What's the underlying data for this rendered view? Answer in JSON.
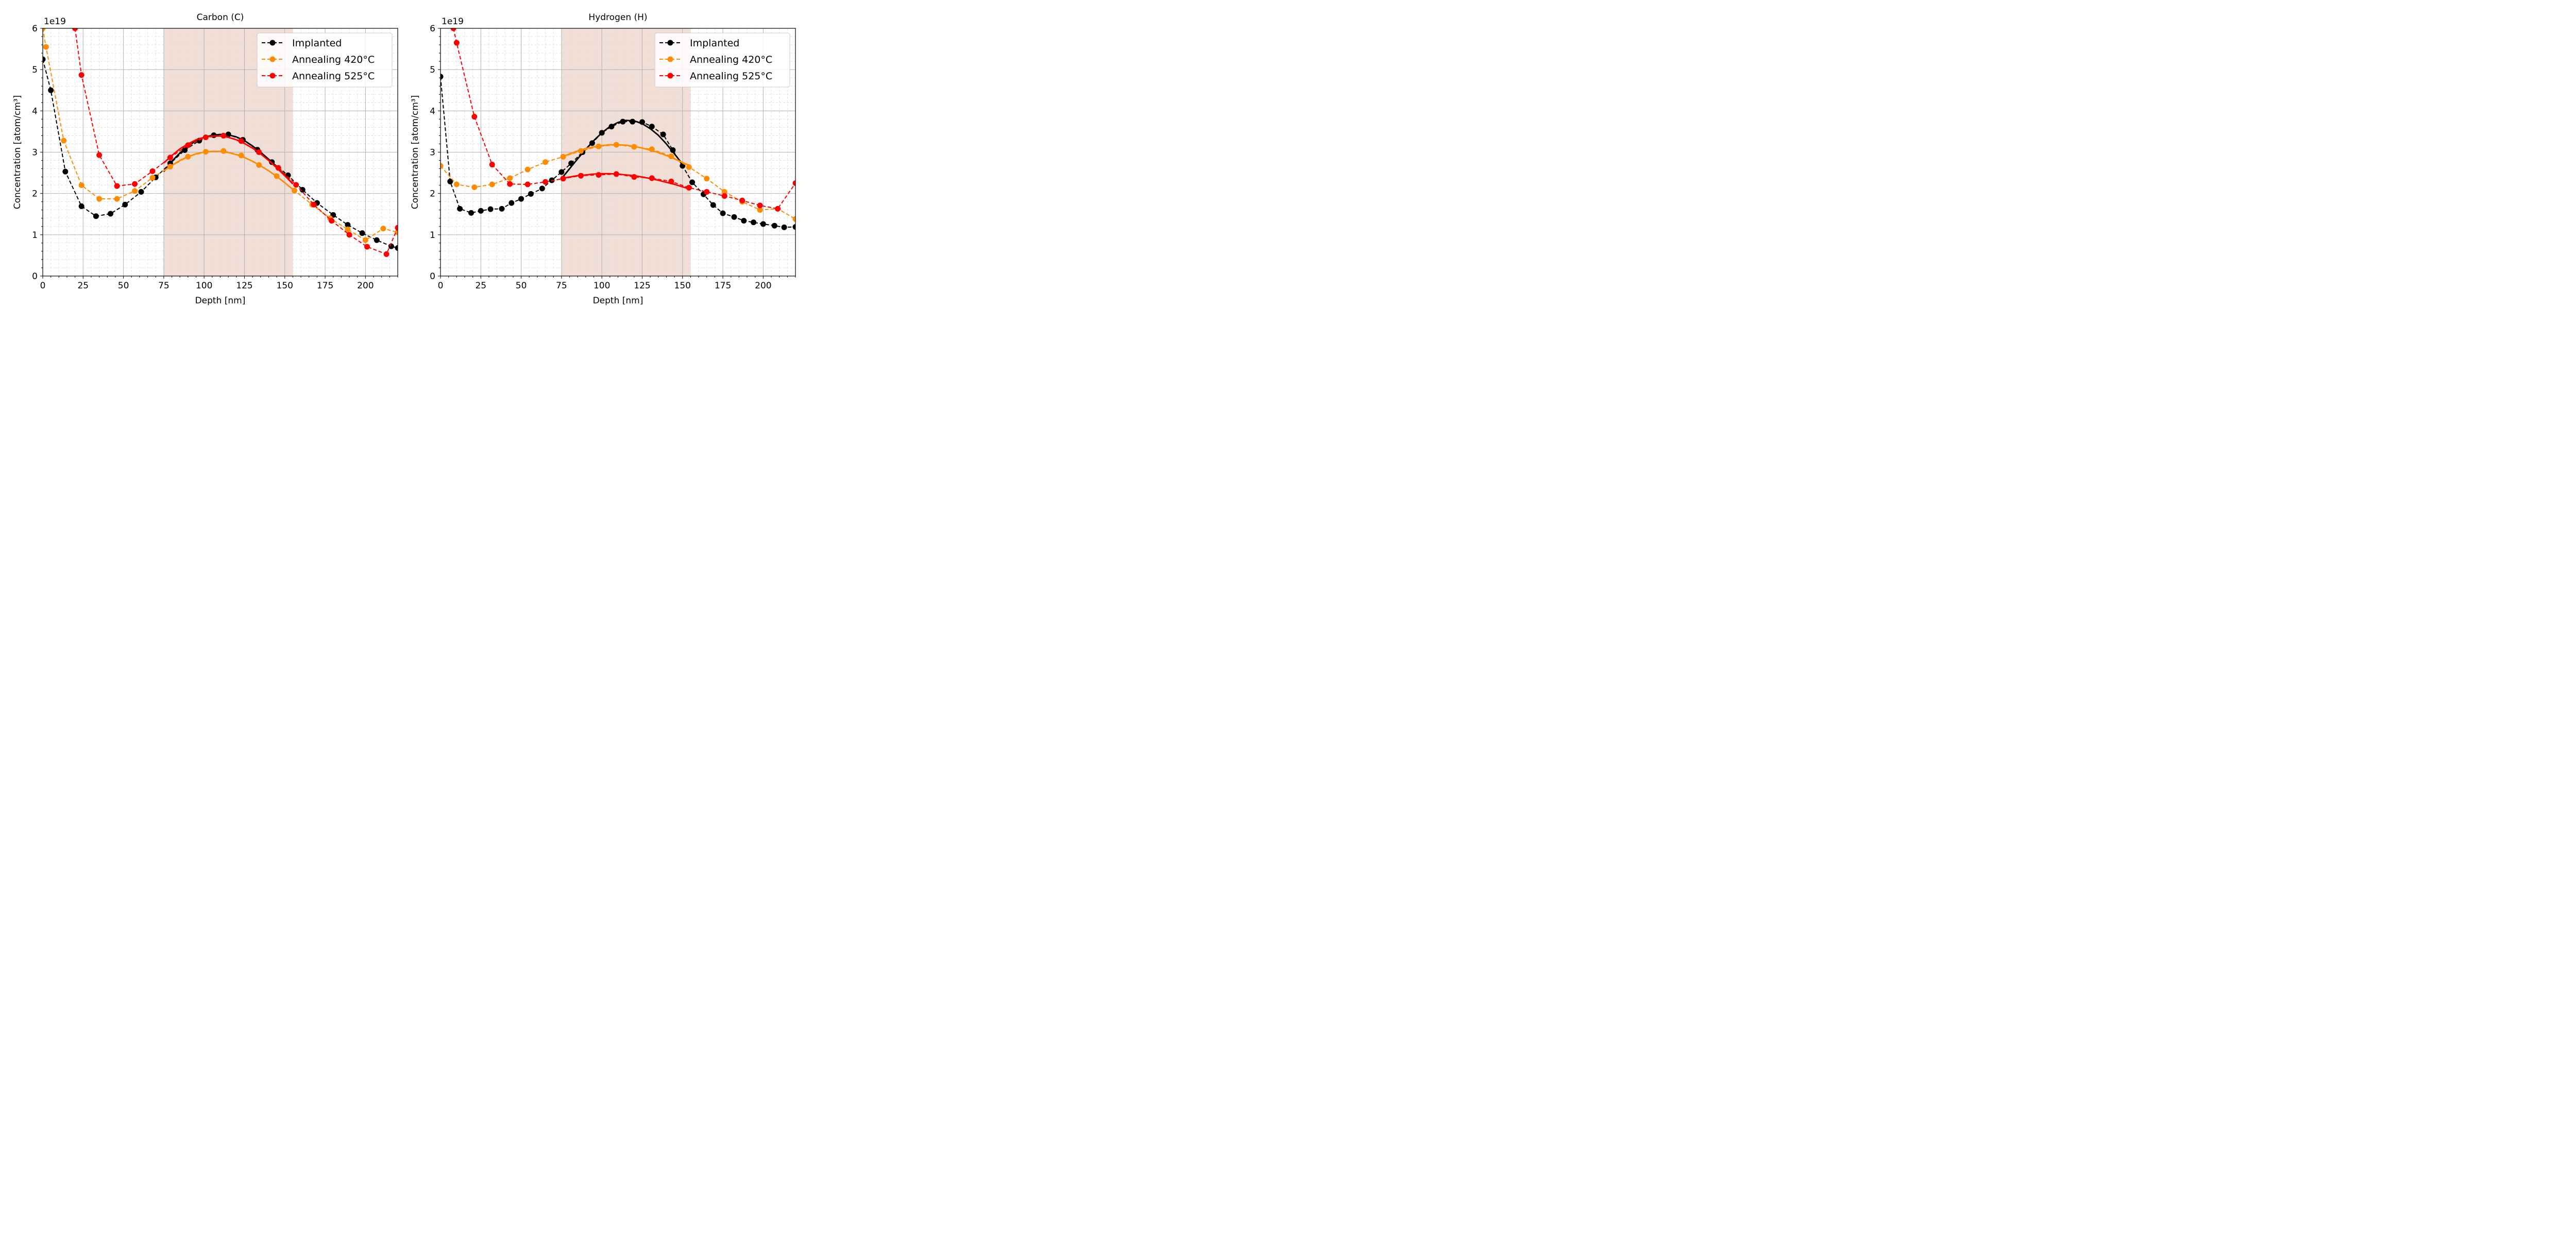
{
  "colors": {
    "implanted": "#000000",
    "annealing_420": "#ff8c00",
    "annealing_525": "#ff0000",
    "shade": "#efd8cf",
    "grid_major": "#b0b0b0",
    "grid_minor": "#dddddd"
  },
  "chart_data": [
    {
      "type": "line",
      "title": "Carbon (C)",
      "xlabel": "Depth [nm]",
      "ylabel": "Concentration [atom/cm³]",
      "y_offset_label": "1e19",
      "xlim": [
        0,
        220
      ],
      "ylim": [
        0,
        6
      ],
      "xticks": [
        0,
        25,
        50,
        75,
        100,
        125,
        150,
        175,
        200
      ],
      "yticks": [
        0,
        1,
        2,
        3,
        4,
        5,
        6
      ],
      "shaded_region": [
        75,
        155
      ],
      "legend": "top-right",
      "series": [
        {
          "name": "Implanted",
          "color_key": "implanted",
          "x": [
            0,
            5,
            14,
            24,
            33,
            42,
            51,
            61,
            70,
            79,
            88,
            97,
            106,
            115,
            124,
            133,
            142,
            152,
            161,
            170,
            180,
            189,
            198,
            207,
            216,
            220
          ],
          "y": [
            5.25,
            4.5,
            2.53,
            1.69,
            1.45,
            1.51,
            1.73,
            2.04,
            2.39,
            2.73,
            3.05,
            3.28,
            3.41,
            3.43,
            3.3,
            3.06,
            2.76,
            2.44,
            2.09,
            1.77,
            1.48,
            1.24,
            1.04,
            0.87,
            0.72,
            0.68
          ],
          "fit_x": [
            75,
            80,
            85,
            90,
            95,
            100,
            105,
            110,
            115,
            120,
            125,
            130,
            135,
            140,
            145,
            150,
            155
          ],
          "fit_y": [
            2.53,
            2.78,
            2.98,
            3.15,
            3.27,
            3.36,
            3.41,
            3.43,
            3.42,
            3.37,
            3.28,
            3.15,
            3.0,
            2.83,
            2.64,
            2.44,
            2.23
          ]
        },
        {
          "name": "Annealing 420°C",
          "color_key": "annealing_420",
          "x": [
            0,
            2,
            13,
            24,
            35,
            46,
            57,
            68,
            79,
            90,
            101,
            112,
            123,
            134,
            145,
            156,
            167,
            178,
            189,
            200,
            211,
            220
          ],
          "y": [
            6.0,
            5.55,
            3.28,
            2.2,
            1.87,
            1.87,
            2.06,
            2.38,
            2.65,
            2.89,
            3.01,
            3.03,
            2.92,
            2.69,
            2.42,
            2.07,
            1.73,
            1.4,
            1.13,
            0.87,
            1.15,
            1.06
          ],
          "fit_x": [
            75,
            80,
            85,
            90,
            95,
            100,
            105,
            110,
            115,
            120,
            125,
            130,
            135,
            140,
            145,
            150,
            155
          ],
          "fit_y": [
            2.55,
            2.68,
            2.8,
            2.89,
            2.96,
            3.0,
            3.02,
            3.02,
            2.99,
            2.94,
            2.87,
            2.78,
            2.67,
            2.55,
            2.41,
            2.26,
            2.1
          ]
        },
        {
          "name": "Annealing 525°C",
          "color_key": "annealing_525",
          "x": [
            20,
            24,
            35,
            46,
            57,
            68,
            79,
            90,
            101,
            112,
            123,
            134,
            146,
            157,
            168,
            179,
            190,
            201,
            213,
            220
          ],
          "y": [
            6.0,
            4.87,
            2.93,
            2.18,
            2.23,
            2.54,
            2.87,
            3.17,
            3.36,
            3.4,
            3.27,
            3.0,
            2.62,
            2.21,
            1.73,
            1.34,
            1.0,
            0.71,
            0.53,
            1.17
          ],
          "fit_x": [
            75,
            80,
            85,
            90,
            95,
            100,
            105,
            110,
            115,
            120,
            125,
            130,
            135,
            140,
            145,
            150,
            155
          ],
          "fit_y": [
            2.74,
            2.92,
            3.08,
            3.2,
            3.3,
            3.36,
            3.39,
            3.39,
            3.36,
            3.3,
            3.21,
            3.1,
            2.96,
            2.8,
            2.62,
            2.43,
            2.23
          ]
        }
      ]
    },
    {
      "type": "line",
      "title": "Hydrogen (H)",
      "xlabel": "Depth [nm]",
      "ylabel": "Concentration [atom/cm³]",
      "y_offset_label": "1e19",
      "xlim": [
        0,
        220
      ],
      "ylim": [
        0,
        6
      ],
      "xticks": [
        0,
        25,
        50,
        75,
        100,
        125,
        150,
        175,
        200
      ],
      "yticks": [
        0,
        1,
        2,
        3,
        4,
        5,
        6
      ],
      "shaded_region": [
        75,
        155
      ],
      "legend": "top-right",
      "series": [
        {
          "name": "Implanted",
          "color_key": "implanted",
          "x": [
            0,
            6,
            12,
            19,
            25,
            31,
            38,
            44,
            50,
            56,
            63,
            69,
            75,
            81,
            88,
            94,
            100,
            106,
            113,
            119,
            125,
            131,
            138,
            144,
            150,
            156,
            163,
            169,
            175,
            182,
            188,
            194,
            200,
            207,
            213,
            220
          ],
          "y": [
            4.83,
            2.29,
            1.63,
            1.53,
            1.58,
            1.62,
            1.63,
            1.77,
            1.87,
            1.99,
            2.12,
            2.32,
            2.52,
            2.73,
            3.0,
            3.22,
            3.47,
            3.62,
            3.74,
            3.74,
            3.73,
            3.62,
            3.43,
            3.05,
            2.67,
            2.27,
            1.98,
            1.72,
            1.52,
            1.43,
            1.34,
            1.3,
            1.26,
            1.22,
            1.18,
            1.19
          ],
          "fit_x": [
            75,
            80,
            85,
            90,
            95,
            100,
            105,
            110,
            115,
            120,
            125,
            130,
            135,
            140,
            145,
            150
          ],
          "fit_y": [
            2.36,
            2.6,
            2.84,
            3.07,
            3.28,
            3.47,
            3.62,
            3.72,
            3.77,
            3.76,
            3.69,
            3.57,
            3.41,
            3.2,
            2.96,
            2.71
          ]
        },
        {
          "name": "Annealing 420°C",
          "color_key": "annealing_420",
          "x": [
            0,
            10,
            21,
            32,
            43,
            54,
            65,
            76,
            87,
            98,
            109,
            120,
            131,
            143,
            154,
            165,
            176,
            187,
            198,
            209,
            220
          ],
          "y": [
            2.67,
            2.22,
            2.15,
            2.22,
            2.37,
            2.58,
            2.76,
            2.89,
            3.03,
            3.14,
            3.18,
            3.13,
            3.07,
            2.9,
            2.64,
            2.36,
            2.04,
            1.8,
            1.6,
            1.63,
            1.38
          ],
          "fit_x": [
            75,
            80,
            85,
            90,
            95,
            100,
            105,
            110,
            115,
            120,
            125,
            130,
            135,
            140,
            145,
            150,
            155
          ],
          "fit_y": [
            2.88,
            2.96,
            3.03,
            3.09,
            3.13,
            3.16,
            3.18,
            3.18,
            3.17,
            3.14,
            3.1,
            3.05,
            2.99,
            2.92,
            2.84,
            2.75,
            2.66
          ]
        },
        {
          "name": "Annealing 525°C",
          "color_key": "annealing_525",
          "x": [
            8,
            10,
            21,
            32,
            43,
            54,
            65,
            76,
            87,
            98,
            109,
            120,
            131,
            143,
            154,
            165,
            176,
            187,
            198,
            209,
            220
          ],
          "y": [
            6.0,
            5.65,
            3.86,
            2.7,
            2.23,
            2.22,
            2.28,
            2.36,
            2.43,
            2.45,
            2.47,
            2.4,
            2.37,
            2.29,
            2.14,
            2.04,
            1.94,
            1.83,
            1.71,
            1.63,
            2.25
          ],
          "fit_x": [
            75,
            80,
            85,
            90,
            95,
            100,
            105,
            110,
            115,
            120,
            125,
            130,
            135,
            140,
            145,
            150,
            155
          ],
          "fit_y": [
            2.36,
            2.4,
            2.43,
            2.45,
            2.47,
            2.48,
            2.48,
            2.47,
            2.45,
            2.43,
            2.4,
            2.36,
            2.32,
            2.27,
            2.22,
            2.16,
            2.1
          ]
        }
      ]
    }
  ]
}
